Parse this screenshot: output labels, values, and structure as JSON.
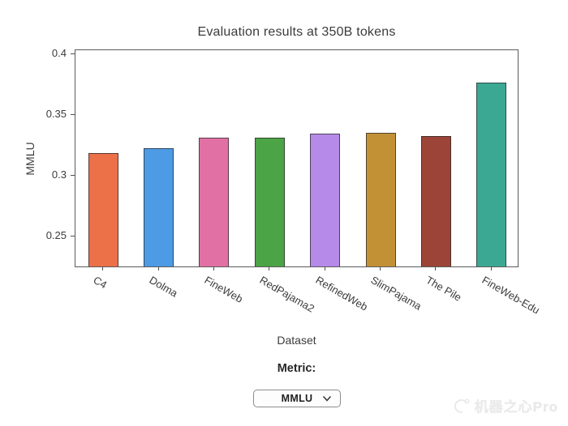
{
  "watermark": {
    "text": "机器之心Pro"
  },
  "controls": {
    "metric_label": "Metric:",
    "dropdown_value": "MMLU"
  },
  "chart_data": {
    "type": "bar",
    "title": "Evaluation results at 350B tokens",
    "xlabel": "Dataset",
    "ylabel": "MMLU",
    "categories": [
      "C4",
      "Dolma",
      "FineWeb",
      "RedPajama2",
      "RefinedWeb",
      "SlimPajama",
      "The Pile",
      "FineWeb-Edu"
    ],
    "values": [
      0.317,
      0.321,
      0.33,
      0.33,
      0.333,
      0.334,
      0.331,
      0.375
    ],
    "bar_colors": [
      "#ec7048",
      "#4d9ae5",
      "#e171a4",
      "#4ba445",
      "#b58ae8",
      "#c29136",
      "#9c4437",
      "#3ba893"
    ],
    "ylim": [
      0.224,
      0.403
    ],
    "yticks": [
      0.25,
      0.3,
      0.35,
      0.4
    ],
    "ytick_labels": [
      "0.25",
      "0.3",
      "0.35",
      "0.4"
    ],
    "xtick_angle": 30,
    "grid": false,
    "legend": "none"
  }
}
